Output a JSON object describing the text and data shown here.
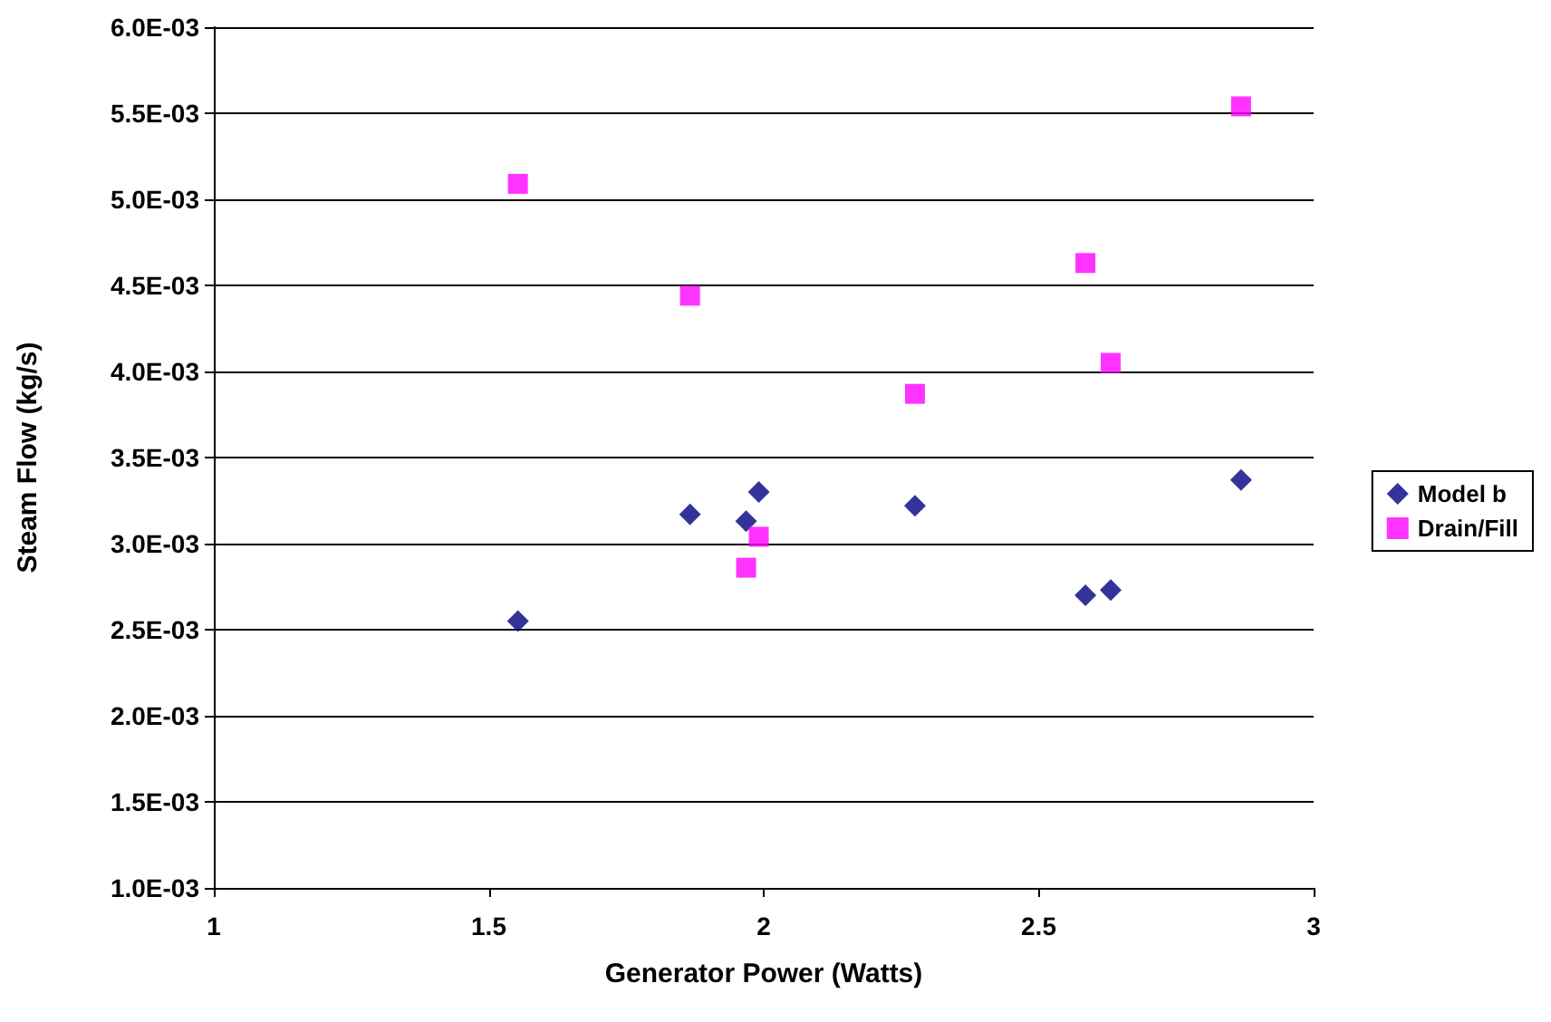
{
  "chart_data": {
    "type": "scatter",
    "xlabel": "Generator Power (Watts)",
    "ylabel": "Steam Flow (kg/s)",
    "xlim": [
      1,
      3
    ],
    "xticks": [
      1,
      1.5,
      2,
      2.5,
      3
    ],
    "ylim": [
      0.001,
      0.006
    ],
    "yticks": [
      {
        "value": 0.001,
        "label": "1.0E-03"
      },
      {
        "value": 0.0015,
        "label": "1.5E-03"
      },
      {
        "value": 0.002,
        "label": "2.0E-03"
      },
      {
        "value": 0.0025,
        "label": "2.5E-03"
      },
      {
        "value": 0.003,
        "label": "3.0E-03"
      },
      {
        "value": 0.0035,
        "label": "3.5E-03"
      },
      {
        "value": 0.004,
        "label": "4.0E-03"
      },
      {
        "value": 0.0045,
        "label": "4.5E-03"
      },
      {
        "value": 0.005,
        "label": "5.0E-03"
      },
      {
        "value": 0.0055,
        "label": "5.5E-03"
      },
      {
        "value": 0.006,
        "label": "6.0E-03"
      }
    ],
    "grid": "y",
    "legend": "right",
    "series": [
      {
        "name": "Model b",
        "color": "#000080",
        "marker": "diamond",
        "x": [
          1.553,
          1.866,
          1.968,
          1.991,
          2.275,
          2.585,
          2.631,
          2.868
        ],
        "values": [
          0.00255,
          0.00317,
          0.00313,
          0.0033,
          0.00322,
          0.0027,
          0.00273,
          0.00337
        ]
      },
      {
        "name": "Drain/Fill",
        "color": "#ff00ff",
        "marker": "square",
        "x": [
          1.553,
          1.866,
          1.968,
          1.991,
          2.275,
          2.585,
          2.631,
          2.868
        ],
        "values": [
          0.00509,
          0.00444,
          0.00286,
          0.00304,
          0.00387,
          0.00463,
          0.00405,
          0.00554
        ]
      }
    ]
  }
}
